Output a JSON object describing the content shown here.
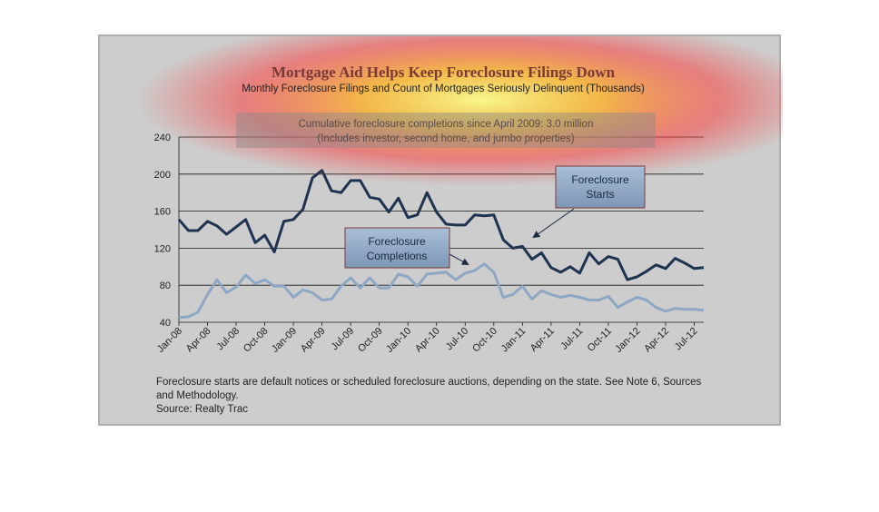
{
  "chart_data": {
    "type": "line",
    "title": "Mortgage Aid Helps Keep Foreclosure Filings Down",
    "subtitle": "Monthly Foreclosure Filings and Count of Mortgages Seriously Delinquent (Thousands)",
    "note_lines": [
      "Cumulative foreclosure completions since April 2009: 3.0 million",
      "(Includes investor, second home, and jumbo properties)"
    ],
    "ylim": [
      40,
      240
    ],
    "yticks": [
      40,
      80,
      120,
      160,
      200,
      240
    ],
    "grid": true,
    "xticklabels": [
      "Jan-08",
      "Apr-08",
      "Jul-08",
      "Oct-08",
      "Jan-09",
      "Apr-09",
      "Jul-09",
      "Oct-09",
      "Jan-10",
      "Apr-10",
      "Jul-10",
      "Oct-10",
      "Jan-11",
      "Apr-11",
      "Jul-11",
      "Oct-11",
      "Jan-12",
      "Apr-12",
      "Jul-12"
    ],
    "x": [
      "Jan-08",
      "Feb-08",
      "Mar-08",
      "Apr-08",
      "May-08",
      "Jun-08",
      "Jul-08",
      "Aug-08",
      "Sep-08",
      "Oct-08",
      "Nov-08",
      "Dec-08",
      "Jan-09",
      "Feb-09",
      "Mar-09",
      "Apr-09",
      "May-09",
      "Jun-09",
      "Jul-09",
      "Aug-09",
      "Sep-09",
      "Oct-09",
      "Nov-09",
      "Dec-09",
      "Jan-10",
      "Feb-10",
      "Mar-10",
      "Apr-10",
      "May-10",
      "Jun-10",
      "Jul-10",
      "Aug-10",
      "Sep-10",
      "Oct-10",
      "Nov-10",
      "Dec-10",
      "Jan-11",
      "Feb-11",
      "Mar-11",
      "Apr-11",
      "May-11",
      "Jun-11",
      "Jul-11",
      "Aug-11",
      "Sep-11",
      "Oct-11",
      "Nov-11",
      "Dec-11",
      "Jan-12",
      "Feb-12",
      "Mar-12",
      "Apr-12",
      "May-12",
      "Jun-12",
      "Jul-12",
      "Aug-12"
    ],
    "series": [
      {
        "name": "Foreclosure Starts",
        "color": "#1e3350",
        "values": [
          151,
          139,
          139,
          149,
          144,
          135,
          143,
          151,
          126,
          134,
          116,
          149,
          151,
          162,
          196,
          204,
          182,
          180,
          193,
          193,
          175,
          173,
          159,
          174,
          153,
          156,
          180,
          159,
          146,
          145,
          145,
          156,
          155,
          156,
          129,
          120,
          122,
          108,
          115,
          99,
          94,
          100,
          93,
          115,
          103,
          111,
          108,
          86,
          89,
          95,
          102,
          98,
          109,
          104,
          98,
          99
        ]
      },
      {
        "name": "Foreclosure Completions",
        "color": "#8ea7c4",
        "values": [
          45,
          46,
          51,
          70,
          86,
          72,
          78,
          91,
          82,
          86,
          79,
          79,
          67,
          75,
          72,
          64,
          65,
          79,
          88,
          77,
          88,
          77,
          77,
          92,
          89,
          79,
          92,
          93,
          94,
          86,
          93,
          96,
          103,
          94,
          67,
          70,
          79,
          65,
          74,
          70,
          67,
          69,
          67,
          64,
          64,
          68,
          56,
          62,
          67,
          64,
          56,
          52,
          55,
          54,
          54,
          53
        ]
      }
    ],
    "callouts": [
      {
        "lines": [
          "Foreclosure",
          "Starts"
        ]
      },
      {
        "lines": [
          "Foreclosure",
          "Completions"
        ]
      }
    ],
    "footnote_lines": [
      "Foreclosure starts are default notices or scheduled foreclosure auctions, depending on the state. See Note 6, Sources",
      "and Methodology.",
      "Source: Realty Trac"
    ]
  }
}
